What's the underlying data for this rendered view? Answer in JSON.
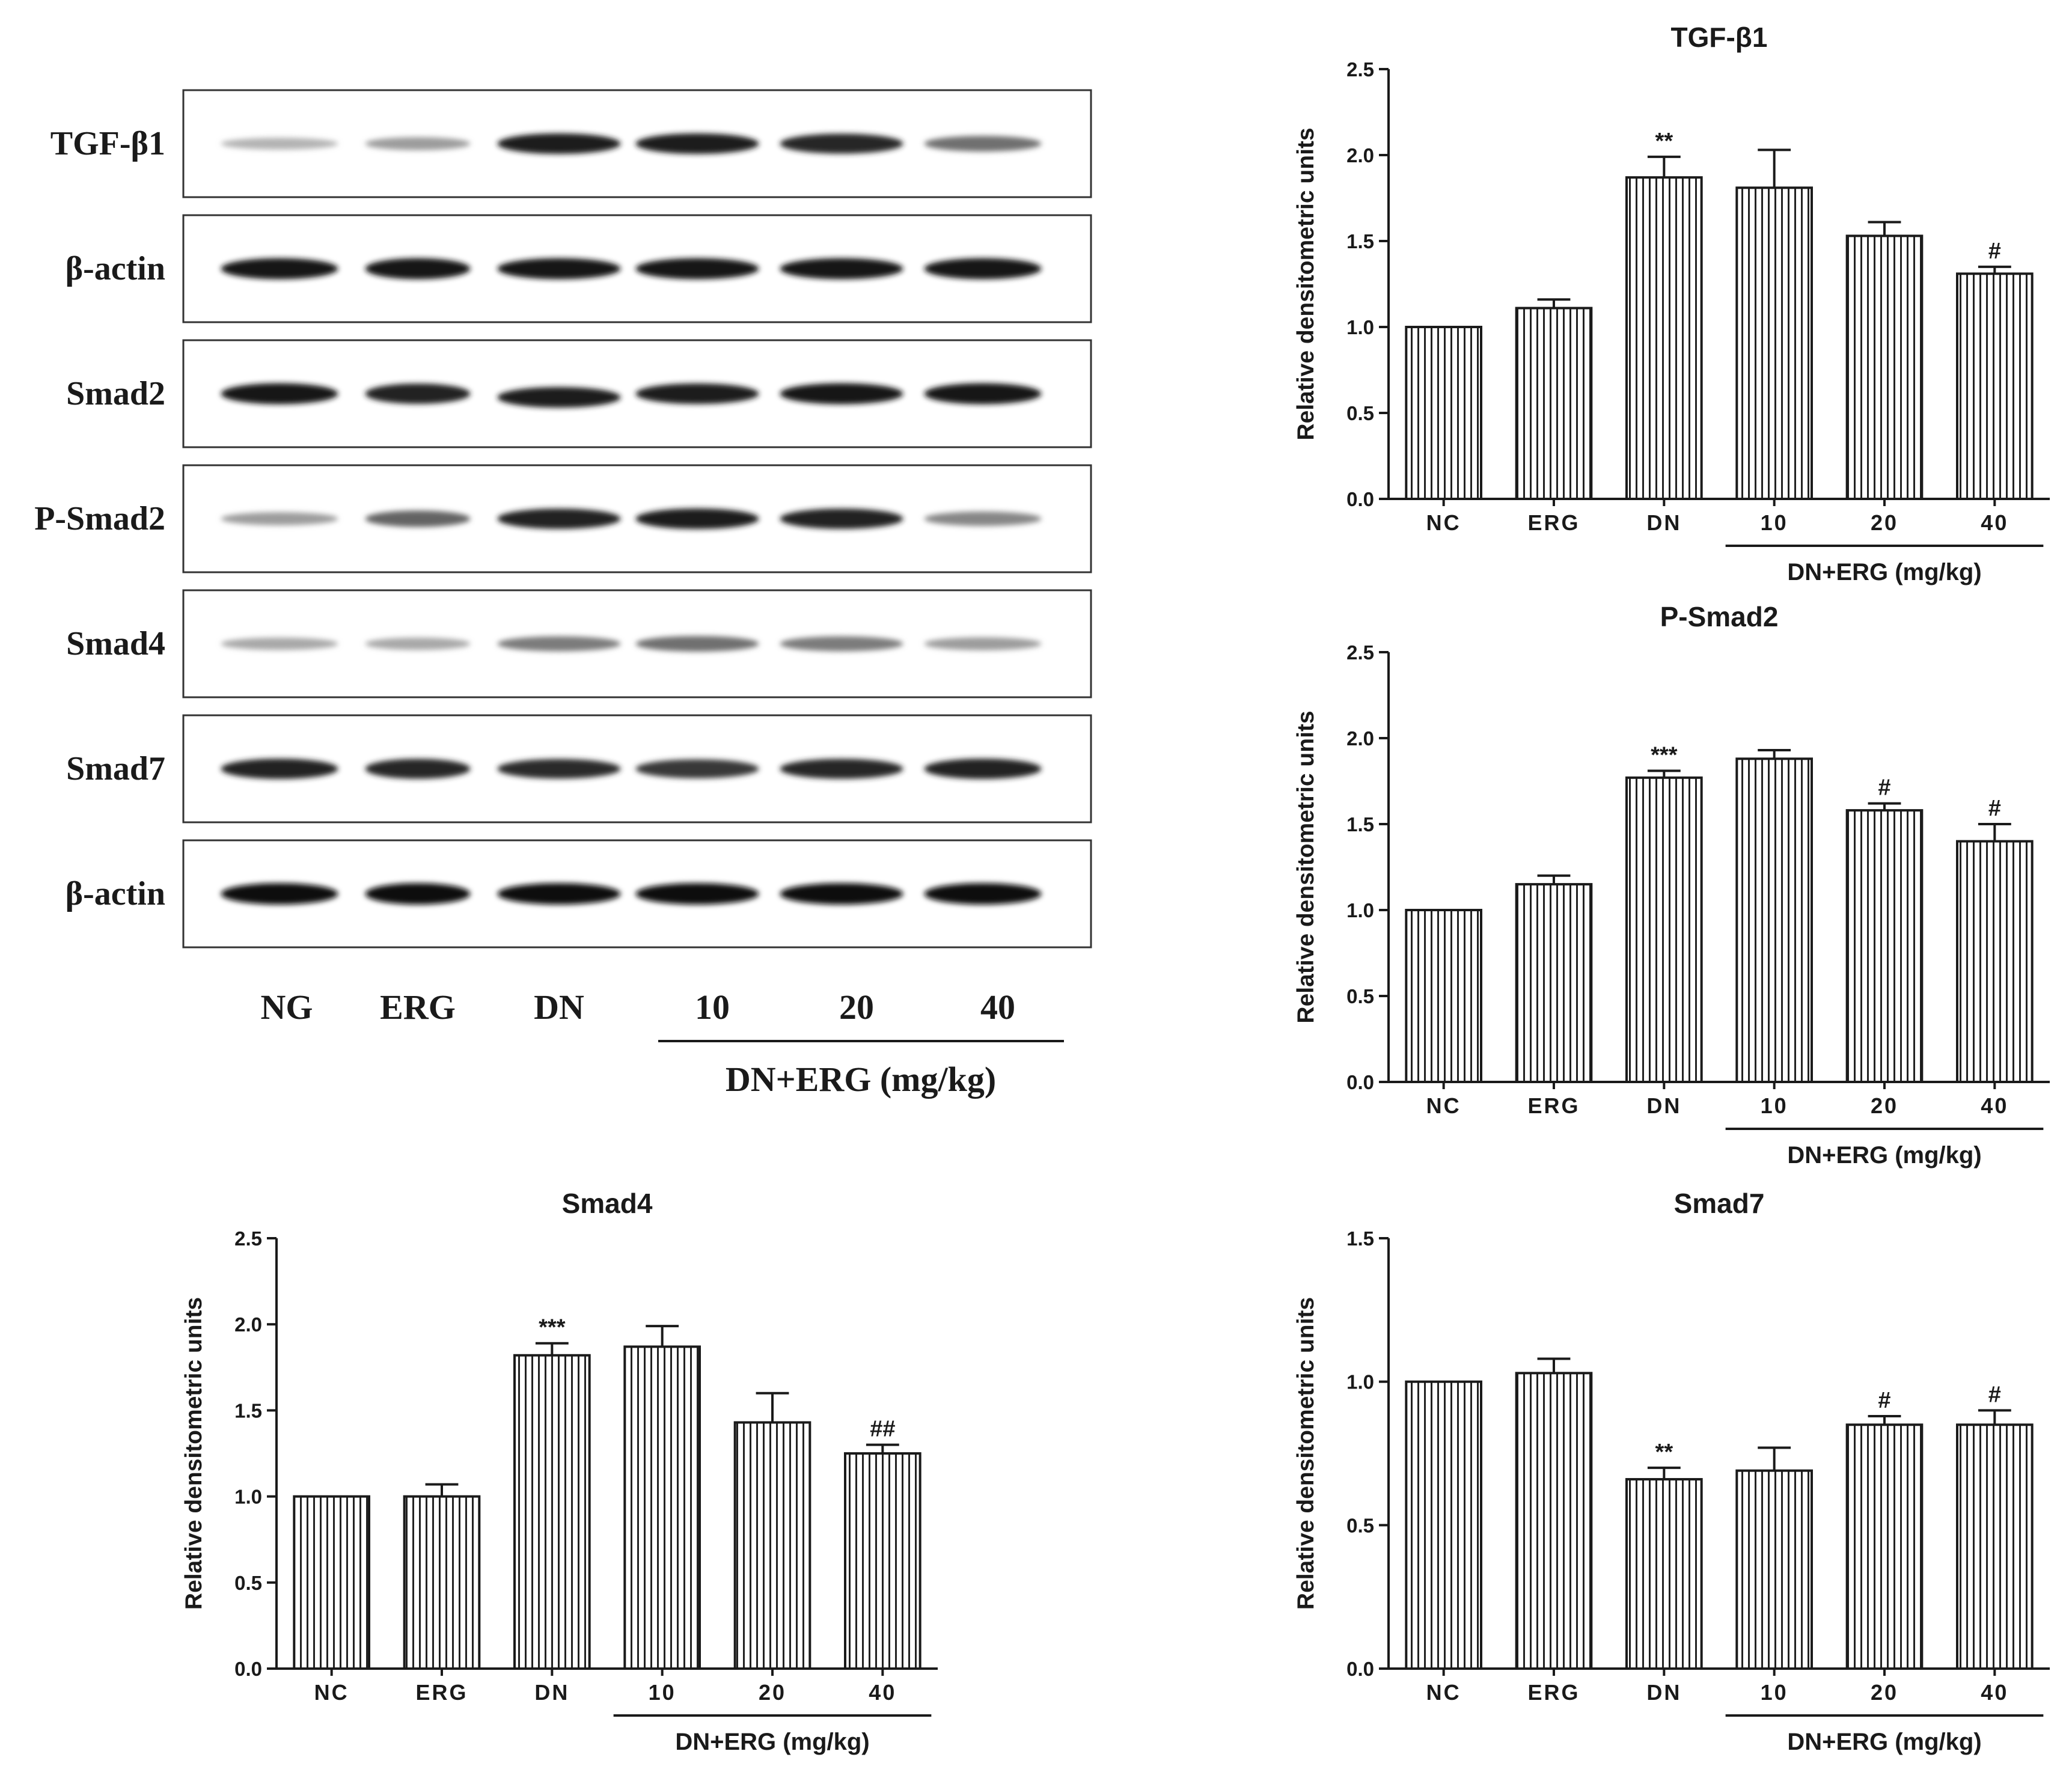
{
  "blot": {
    "rows": [
      {
        "label": "TGF-β1",
        "intensity": [
          0.25,
          0.35,
          0.92,
          0.92,
          0.88,
          0.55
        ]
      },
      {
        "label": "β-actin",
        "intensity": [
          0.95,
          0.95,
          0.95,
          0.95,
          0.95,
          0.95
        ]
      },
      {
        "label": "Smad2",
        "intensity": [
          0.95,
          0.9,
          0.92,
          0.92,
          0.95,
          0.95
        ]
      },
      {
        "label": "P-Smad2",
        "intensity": [
          0.35,
          0.6,
          0.9,
          0.92,
          0.9,
          0.45
        ]
      },
      {
        "label": "Smad4",
        "intensity": [
          0.3,
          0.3,
          0.5,
          0.55,
          0.5,
          0.35
        ]
      },
      {
        "label": "Smad7",
        "intensity": [
          0.9,
          0.88,
          0.85,
          0.8,
          0.88,
          0.9
        ]
      },
      {
        "label": "β-actin",
        "intensity": [
          0.98,
          0.98,
          0.98,
          0.98,
          0.98,
          0.98
        ]
      }
    ],
    "lanes": [
      "NG",
      "ERG",
      "DN",
      "10",
      "20",
      "40"
    ],
    "group_label": "DN+ERG (mg/kg)"
  },
  "chart_data": [
    {
      "type": "bar",
      "title": "TGF-β1",
      "ylabel": "Relative densitometric units",
      "xlabel": "",
      "categories": [
        "NC",
        "ERG",
        "DN",
        "10",
        "20",
        "40"
      ],
      "values": [
        1.0,
        1.11,
        1.87,
        1.81,
        1.53,
        1.31
      ],
      "errors": [
        0.0,
        0.05,
        0.12,
        0.22,
        0.08,
        0.04
      ],
      "annotations": [
        "",
        "",
        "**",
        "",
        "",
        "#"
      ],
      "ylim": [
        0,
        2.5
      ],
      "yticks": [
        "0.0",
        "0.5",
        "1.0",
        "1.5",
        "2.0",
        "2.5"
      ],
      "group_label": "DN+ERG (mg/kg)"
    },
    {
      "type": "bar",
      "title": "P-Smad2",
      "ylabel": "Relative densitometric units",
      "xlabel": "",
      "categories": [
        "NC",
        "ERG",
        "DN",
        "10",
        "20",
        "40"
      ],
      "values": [
        1.0,
        1.15,
        1.77,
        1.88,
        1.58,
        1.4
      ],
      "errors": [
        0.0,
        0.05,
        0.04,
        0.05,
        0.04,
        0.1
      ],
      "annotations": [
        "",
        "",
        "***",
        "",
        "#",
        "#"
      ],
      "ylim": [
        0,
        2.5
      ],
      "yticks": [
        "0.0",
        "0.5",
        "1.0",
        "1.5",
        "2.0",
        "2.5"
      ],
      "group_label": "DN+ERG (mg/kg)"
    },
    {
      "type": "bar",
      "title": "Smad4",
      "ylabel": "Relative densitometric units",
      "xlabel": "",
      "categories": [
        "NC",
        "ERG",
        "DN",
        "10",
        "20",
        "40"
      ],
      "values": [
        1.0,
        1.0,
        1.82,
        1.87,
        1.43,
        1.25
      ],
      "errors": [
        0.0,
        0.07,
        0.07,
        0.12,
        0.17,
        0.05
      ],
      "annotations": [
        "",
        "",
        "***",
        "",
        "",
        "##"
      ],
      "ylim": [
        0,
        2.5
      ],
      "yticks": [
        "0.0",
        "0.5",
        "1.0",
        "1.5",
        "2.0",
        "2.5"
      ],
      "group_label": "DN+ERG (mg/kg)"
    },
    {
      "type": "bar",
      "title": "Smad7",
      "ylabel": "Relative densitometric units",
      "xlabel": "",
      "categories": [
        "NC",
        "ERG",
        "DN",
        "10",
        "20",
        "40"
      ],
      "values": [
        1.0,
        1.03,
        0.66,
        0.69,
        0.85,
        0.85
      ],
      "errors": [
        0.0,
        0.05,
        0.04,
        0.08,
        0.03,
        0.05
      ],
      "annotations": [
        "",
        "",
        "**",
        "",
        "#",
        "#"
      ],
      "ylim": [
        0,
        1.5
      ],
      "yticks": [
        "0.0",
        "0.5",
        "1.0",
        "1.5"
      ],
      "group_label": "DN+ERG (mg/kg)"
    }
  ]
}
